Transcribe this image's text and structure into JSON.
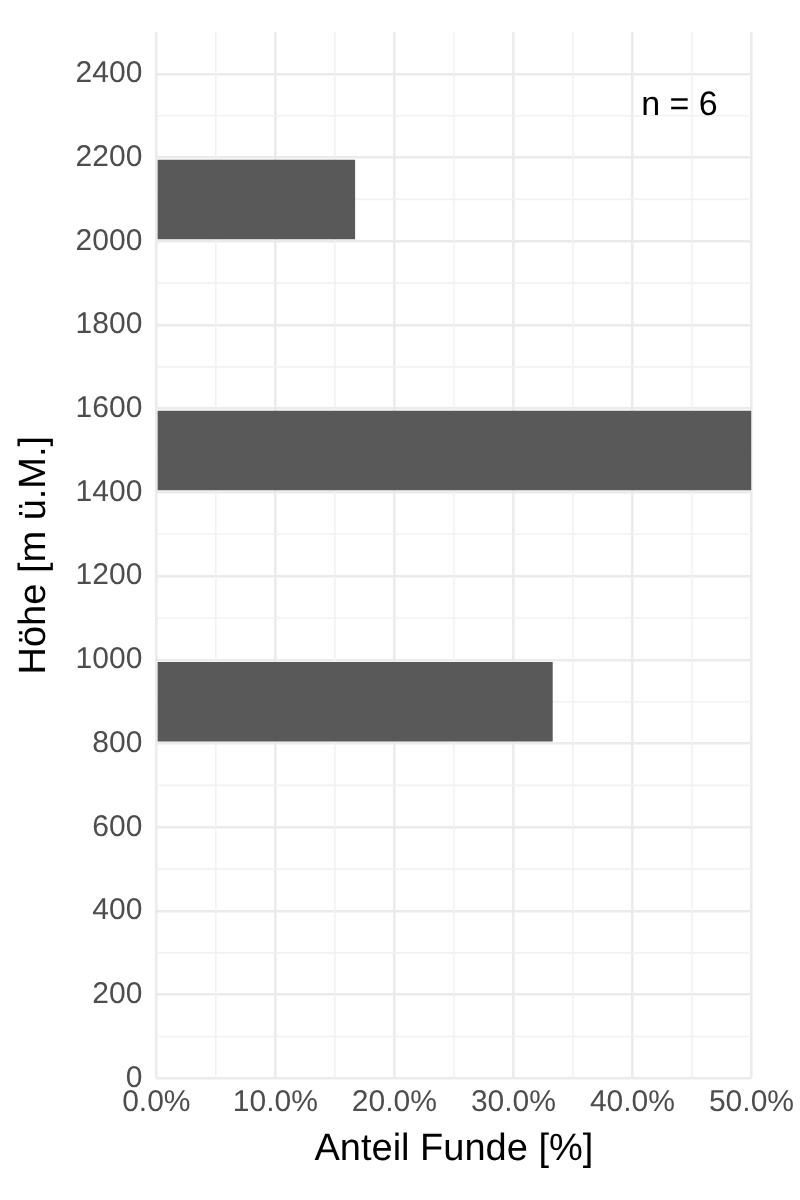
{
  "chart_data": {
    "type": "histogram",
    "orientation": "horizontal",
    "bins": [
      800,
      1000,
      1200,
      1400,
      1600,
      1800,
      2000,
      2200
    ],
    "values": [
      33.3,
      null,
      null,
      50,
      null,
      null,
      16.7
    ],
    "color": "#595959",
    "xlim": [
      0,
      50
    ],
    "xticks": [
      {
        "value": 0,
        "label": "0.0%"
      },
      {
        "value": 10,
        "label": "10.0%"
      },
      {
        "value": 20,
        "label": "20.0%"
      },
      {
        "value": 30,
        "label": "30.0%"
      },
      {
        "value": 40,
        "label": "40.0%"
      },
      {
        "value": 50,
        "label": "50.0%"
      }
    ],
    "ylim": [
      0,
      2500
    ],
    "yticks": [
      0,
      200,
      400,
      600,
      800,
      1000,
      1200,
      1400,
      1600,
      1800,
      2000,
      2200,
      2400
    ],
    "xlabel": "Anteil Funde [%]",
    "ylabel": "Höhe [m ü.M.]",
    "annotations": [
      "n = 6"
    ],
    "grid": true
  }
}
